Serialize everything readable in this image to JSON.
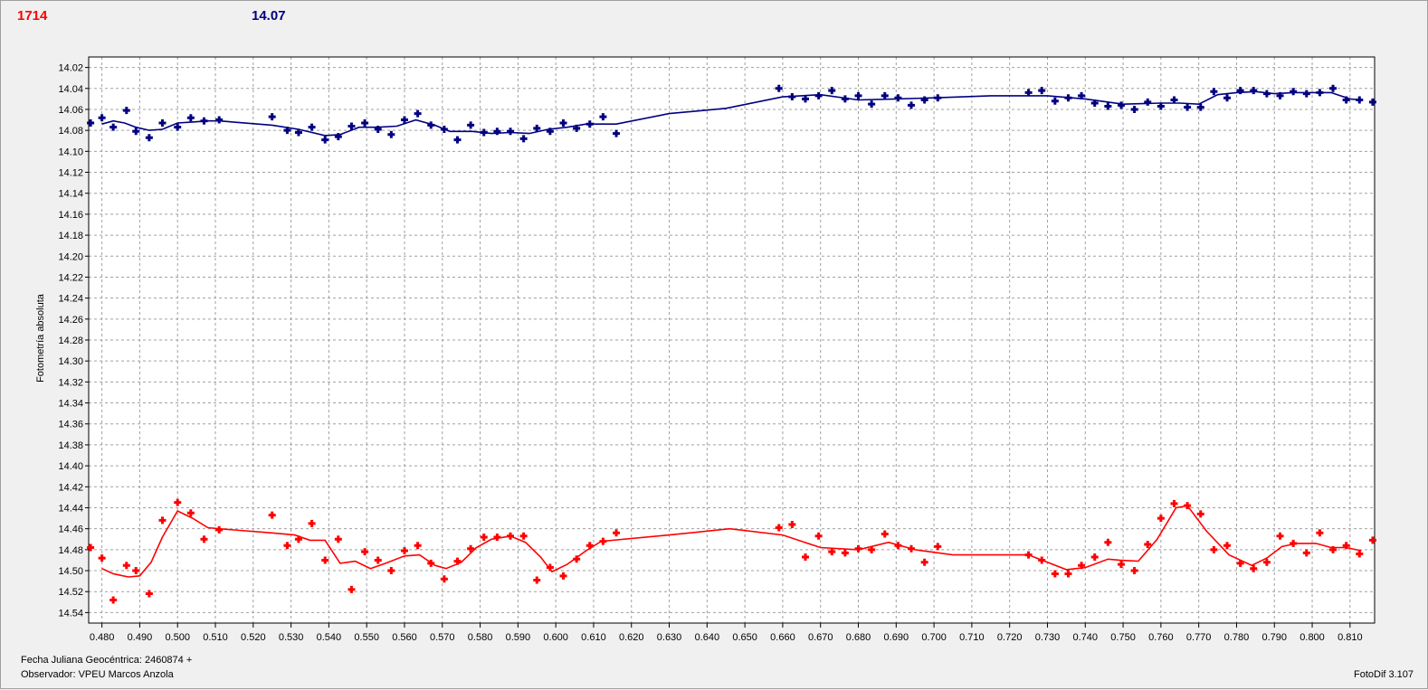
{
  "header": {
    "left_value": "1714",
    "right_value": "14.07"
  },
  "footer": {
    "date_label": "Fecha Juliana Geocéntrica: 2460874 +",
    "observer": "Observador: VPEU Marcos Anzola",
    "version": "FotoDif 3.107"
  },
  "colors": {
    "series_red": "#ff0000",
    "series_blue": "#000080",
    "grid": "#a0a0a0"
  },
  "chart_data": {
    "type": "scatter",
    "ylabel": "Fotometría absoluta",
    "xlabel": "",
    "xlim": [
      0.4765,
      0.8165
    ],
    "ylim": [
      14.01,
      14.55
    ],
    "y_inverted": true,
    "grid": true,
    "x_ticks": [
      "0.480",
      "0.490",
      "0.500",
      "0.510",
      "0.520",
      "0.530",
      "0.540",
      "0.550",
      "0.560",
      "0.570",
      "0.580",
      "0.590",
      "0.600",
      "0.610",
      "0.620",
      "0.630",
      "0.640",
      "0.650",
      "0.660",
      "0.670",
      "0.680",
      "0.690",
      "0.700",
      "0.710",
      "0.720",
      "0.730",
      "0.740",
      "0.750",
      "0.760",
      "0.770",
      "0.780",
      "0.790",
      "0.800",
      "0.810"
    ],
    "y_ticks": [
      "14.02",
      "14.04",
      "14.06",
      "14.08",
      "14.10",
      "14.12",
      "14.14",
      "14.16",
      "14.18",
      "14.20",
      "14.22",
      "14.24",
      "14.26",
      "14.28",
      "14.30",
      "14.32",
      "14.34",
      "14.36",
      "14.38",
      "14.40",
      "14.42",
      "14.44",
      "14.46",
      "14.48",
      "14.50",
      "14.52",
      "14.54"
    ],
    "series": [
      {
        "color": "#000080",
        "points": [
          [
            0.477,
            14.073
          ],
          [
            0.48,
            14.068
          ],
          [
            0.483,
            14.077
          ],
          [
            0.4865,
            14.061
          ],
          [
            0.489,
            14.081
          ],
          [
            0.4925,
            14.087
          ],
          [
            0.496,
            14.073
          ],
          [
            0.5,
            14.077
          ],
          [
            0.5035,
            14.068
          ],
          [
            0.507,
            14.071
          ],
          [
            0.511,
            14.07
          ],
          [
            0.525,
            14.067
          ],
          [
            0.529,
            14.08
          ],
          [
            0.532,
            14.082
          ],
          [
            0.5355,
            14.077
          ],
          [
            0.539,
            14.089
          ],
          [
            0.5425,
            14.086
          ],
          [
            0.546,
            14.076
          ],
          [
            0.5495,
            14.073
          ],
          [
            0.553,
            14.079
          ],
          [
            0.5565,
            14.084
          ],
          [
            0.56,
            14.07
          ],
          [
            0.5635,
            14.064
          ],
          [
            0.567,
            14.075
          ],
          [
            0.5705,
            14.079
          ],
          [
            0.574,
            14.089
          ],
          [
            0.5775,
            14.075
          ],
          [
            0.581,
            14.082
          ],
          [
            0.5845,
            14.081
          ],
          [
            0.588,
            14.081
          ],
          [
            0.5915,
            14.088
          ],
          [
            0.595,
            14.078
          ],
          [
            0.5985,
            14.081
          ],
          [
            0.602,
            14.073
          ],
          [
            0.6055,
            14.078
          ],
          [
            0.609,
            14.074
          ],
          [
            0.6125,
            14.067
          ],
          [
            0.616,
            14.083
          ],
          [
            0.659,
            14.04
          ],
          [
            0.6625,
            14.048
          ],
          [
            0.666,
            14.05
          ],
          [
            0.6695,
            14.047
          ],
          [
            0.673,
            14.042
          ],
          [
            0.6765,
            14.05
          ],
          [
            0.68,
            14.047
          ],
          [
            0.6835,
            14.055
          ],
          [
            0.687,
            14.047
          ],
          [
            0.6905,
            14.049
          ],
          [
            0.694,
            14.056
          ],
          [
            0.6975,
            14.051
          ],
          [
            0.701,
            14.049
          ],
          [
            0.725,
            14.044
          ],
          [
            0.7285,
            14.042
          ],
          [
            0.732,
            14.052
          ],
          [
            0.7355,
            14.049
          ],
          [
            0.739,
            14.047
          ],
          [
            0.7425,
            14.054
          ],
          [
            0.746,
            14.057
          ],
          [
            0.7495,
            14.056
          ],
          [
            0.753,
            14.06
          ],
          [
            0.7565,
            14.053
          ],
          [
            0.76,
            14.057
          ],
          [
            0.7635,
            14.051
          ],
          [
            0.767,
            14.058
          ],
          [
            0.7705,
            14.058
          ],
          [
            0.774,
            14.043
          ],
          [
            0.7775,
            14.049
          ],
          [
            0.781,
            14.042
          ],
          [
            0.7845,
            14.042
          ],
          [
            0.788,
            14.045
          ],
          [
            0.7915,
            14.047
          ],
          [
            0.795,
            14.043
          ],
          [
            0.7985,
            14.045
          ],
          [
            0.802,
            14.044
          ],
          [
            0.8055,
            14.04
          ],
          [
            0.809,
            14.051
          ],
          [
            0.8125,
            14.051
          ],
          [
            0.816,
            14.053
          ]
        ],
        "trend": [
          [
            0.48,
            14.074
          ],
          [
            0.483,
            14.071
          ],
          [
            0.486,
            14.073
          ],
          [
            0.489,
            14.077
          ],
          [
            0.4925,
            14.08
          ],
          [
            0.496,
            14.079
          ],
          [
            0.5,
            14.073
          ],
          [
            0.504,
            14.072
          ],
          [
            0.508,
            14.071
          ],
          [
            0.511,
            14.071
          ],
          [
            0.525,
            14.075
          ],
          [
            0.532,
            14.079
          ],
          [
            0.539,
            14.085
          ],
          [
            0.543,
            14.084
          ],
          [
            0.548,
            14.077
          ],
          [
            0.553,
            14.077
          ],
          [
            0.558,
            14.076
          ],
          [
            0.563,
            14.07
          ],
          [
            0.568,
            14.075
          ],
          [
            0.572,
            14.081
          ],
          [
            0.578,
            14.081
          ],
          [
            0.583,
            14.083
          ],
          [
            0.588,
            14.082
          ],
          [
            0.593,
            14.083
          ],
          [
            0.598,
            14.079
          ],
          [
            0.603,
            14.077
          ],
          [
            0.608,
            14.074
          ],
          [
            0.616,
            14.074
          ],
          [
            0.63,
            14.064
          ],
          [
            0.645,
            14.059
          ],
          [
            0.66,
            14.048
          ],
          [
            0.67,
            14.046
          ],
          [
            0.68,
            14.051
          ],
          [
            0.69,
            14.05
          ],
          [
            0.7,
            14.049
          ],
          [
            0.715,
            14.047
          ],
          [
            0.73,
            14.047
          ],
          [
            0.74,
            14.05
          ],
          [
            0.75,
            14.055
          ],
          [
            0.76,
            14.054
          ],
          [
            0.765,
            14.054
          ],
          [
            0.77,
            14.055
          ],
          [
            0.775,
            14.046
          ],
          [
            0.78,
            14.044
          ],
          [
            0.785,
            14.043
          ],
          [
            0.79,
            14.045
          ],
          [
            0.795,
            14.044
          ],
          [
            0.8,
            14.044
          ],
          [
            0.805,
            14.044
          ],
          [
            0.81,
            14.05
          ],
          [
            0.813,
            14.051
          ]
        ]
      },
      {
        "color": "#ff0000",
        "points": [
          [
            0.477,
            14.478
          ],
          [
            0.48,
            14.488
          ],
          [
            0.483,
            14.528
          ],
          [
            0.4865,
            14.495
          ],
          [
            0.489,
            14.5
          ],
          [
            0.4925,
            14.522
          ],
          [
            0.496,
            14.452
          ],
          [
            0.5,
            14.435
          ],
          [
            0.5035,
            14.445
          ],
          [
            0.507,
            14.47
          ],
          [
            0.511,
            14.461
          ],
          [
            0.525,
            14.447
          ],
          [
            0.529,
            14.476
          ],
          [
            0.532,
            14.47
          ],
          [
            0.5355,
            14.455
          ],
          [
            0.539,
            14.49
          ],
          [
            0.5425,
            14.47
          ],
          [
            0.546,
            14.518
          ],
          [
            0.5495,
            14.482
          ],
          [
            0.553,
            14.49
          ],
          [
            0.5565,
            14.5
          ],
          [
            0.56,
            14.481
          ],
          [
            0.5635,
            14.476
          ],
          [
            0.567,
            14.493
          ],
          [
            0.5705,
            14.508
          ],
          [
            0.574,
            14.491
          ],
          [
            0.5775,
            14.479
          ],
          [
            0.581,
            14.468
          ],
          [
            0.5845,
            14.468
          ],
          [
            0.588,
            14.467
          ],
          [
            0.5915,
            14.467
          ],
          [
            0.595,
            14.509
          ],
          [
            0.5985,
            14.497
          ],
          [
            0.602,
            14.505
          ],
          [
            0.6055,
            14.489
          ],
          [
            0.609,
            14.476
          ],
          [
            0.6125,
            14.472
          ],
          [
            0.616,
            14.464
          ],
          [
            0.659,
            14.459
          ],
          [
            0.6625,
            14.456
          ],
          [
            0.666,
            14.487
          ],
          [
            0.6695,
            14.467
          ],
          [
            0.673,
            14.482
          ],
          [
            0.6765,
            14.483
          ],
          [
            0.68,
            14.479
          ],
          [
            0.6835,
            14.48
          ],
          [
            0.687,
            14.465
          ],
          [
            0.6905,
            14.476
          ],
          [
            0.694,
            14.479
          ],
          [
            0.6975,
            14.492
          ],
          [
            0.701,
            14.477
          ],
          [
            0.725,
            14.485
          ],
          [
            0.7285,
            14.49
          ],
          [
            0.732,
            14.503
          ],
          [
            0.7355,
            14.503
          ],
          [
            0.739,
            14.495
          ],
          [
            0.7425,
            14.487
          ],
          [
            0.746,
            14.473
          ],
          [
            0.7495,
            14.494
          ],
          [
            0.753,
            14.5
          ],
          [
            0.7565,
            14.475
          ],
          [
            0.76,
            14.45
          ],
          [
            0.7635,
            14.436
          ],
          [
            0.767,
            14.438
          ],
          [
            0.7705,
            14.446
          ],
          [
            0.774,
            14.48
          ],
          [
            0.7775,
            14.476
          ],
          [
            0.781,
            14.493
          ],
          [
            0.7845,
            14.498
          ],
          [
            0.788,
            14.492
          ],
          [
            0.7915,
            14.467
          ],
          [
            0.795,
            14.474
          ],
          [
            0.7985,
            14.483
          ],
          [
            0.802,
            14.464
          ],
          [
            0.8055,
            14.48
          ],
          [
            0.809,
            14.476
          ],
          [
            0.8125,
            14.484
          ],
          [
            0.816,
            14.471
          ]
        ],
        "trend": [
          [
            0.48,
            14.498
          ],
          [
            0.483,
            14.503
          ],
          [
            0.487,
            14.506
          ],
          [
            0.49,
            14.505
          ],
          [
            0.493,
            14.492
          ],
          [
            0.496,
            14.468
          ],
          [
            0.5,
            14.443
          ],
          [
            0.504,
            14.45
          ],
          [
            0.508,
            14.459
          ],
          [
            0.511,
            14.46
          ],
          [
            0.525,
            14.464
          ],
          [
            0.531,
            14.466
          ],
          [
            0.535,
            14.471
          ],
          [
            0.539,
            14.471
          ],
          [
            0.543,
            14.493
          ],
          [
            0.547,
            14.491
          ],
          [
            0.551,
            14.498
          ],
          [
            0.555,
            14.493
          ],
          [
            0.56,
            14.486
          ],
          [
            0.564,
            14.485
          ],
          [
            0.568,
            14.495
          ],
          [
            0.571,
            14.498
          ],
          [
            0.575,
            14.492
          ],
          [
            0.579,
            14.478
          ],
          [
            0.583,
            14.47
          ],
          [
            0.588,
            14.467
          ],
          [
            0.592,
            14.473
          ],
          [
            0.596,
            14.487
          ],
          [
            0.599,
            14.501
          ],
          [
            0.603,
            14.494
          ],
          [
            0.608,
            14.481
          ],
          [
            0.612,
            14.472
          ],
          [
            0.63,
            14.466
          ],
          [
            0.646,
            14.46
          ],
          [
            0.66,
            14.466
          ],
          [
            0.67,
            14.478
          ],
          [
            0.68,
            14.48
          ],
          [
            0.688,
            14.473
          ],
          [
            0.695,
            14.48
          ],
          [
            0.705,
            14.485
          ],
          [
            0.725,
            14.485
          ],
          [
            0.735,
            14.499
          ],
          [
            0.74,
            14.497
          ],
          [
            0.746,
            14.489
          ],
          [
            0.749,
            14.49
          ],
          [
            0.754,
            14.491
          ],
          [
            0.759,
            14.47
          ],
          [
            0.764,
            14.44
          ],
          [
            0.767,
            14.438
          ],
          [
            0.772,
            14.462
          ],
          [
            0.778,
            14.485
          ],
          [
            0.784,
            14.495
          ],
          [
            0.788,
            14.488
          ],
          [
            0.792,
            14.477
          ],
          [
            0.796,
            14.474
          ],
          [
            0.801,
            14.474
          ],
          [
            0.805,
            14.478
          ],
          [
            0.809,
            14.478
          ],
          [
            0.813,
            14.481
          ]
        ]
      }
    ]
  }
}
